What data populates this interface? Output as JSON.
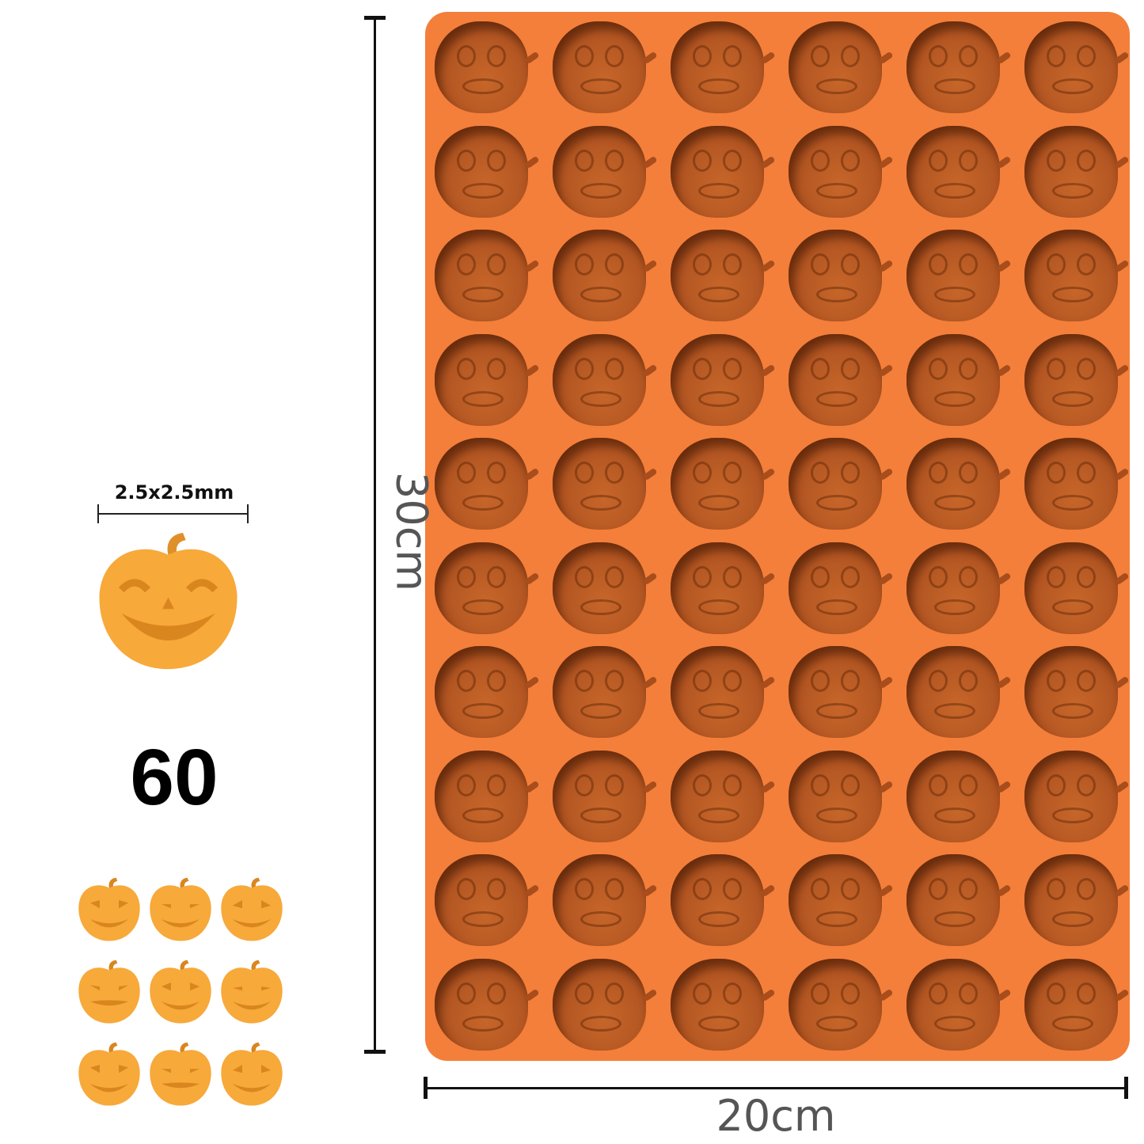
{
  "product": {
    "height_label": "30cm",
    "width_label": "20cm",
    "piece_size_label": "2.5x2.5mm",
    "count_label": "60",
    "mold_rows": 10,
    "mold_columns": 6,
    "variant_count": 9
  },
  "colors": {
    "mold": "#f47f3a",
    "cavity": "#b35622",
    "pumpkin": "#f7a93a",
    "pumpkin_dark": "#d9861f",
    "dimension_line": "#111111"
  }
}
